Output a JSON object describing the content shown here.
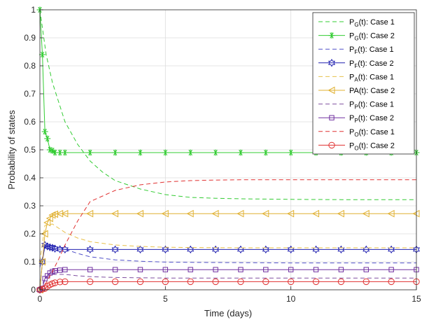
{
  "chart_data": {
    "type": "line",
    "title": "",
    "xlabel": "Time (days)",
    "ylabel": "Probability of states",
    "xlim": [
      0,
      15
    ],
    "ylim": [
      0,
      1
    ],
    "xticks": [
      0,
      5,
      10,
      15
    ],
    "yticks": [
      0,
      0.1,
      0.2,
      0.3,
      0.4,
      0.5,
      0.6,
      0.7,
      0.8,
      0.9,
      1
    ],
    "xtick_labels": [
      "0",
      "5",
      "10",
      "15"
    ],
    "ytick_labels": [
      "0",
      "0.1",
      "0.2",
      "0.3",
      "0.4",
      "0.5",
      "0.6",
      "0.7",
      "0.8",
      "0.9",
      "1"
    ],
    "grid": true,
    "legend_position": "top-right",
    "series": [
      {
        "label_main": "P",
        "label_sub": "G",
        "label_rest": "(t): Case 1",
        "color": "#33cc33",
        "style": "dashed",
        "marker": "none",
        "x": [
          0,
          0.25,
          0.5,
          0.75,
          1,
          1.5,
          2,
          2.5,
          3,
          4,
          5,
          6,
          7,
          8,
          10,
          12,
          15
        ],
        "y": [
          1,
          0.84,
          0.74,
          0.67,
          0.6,
          0.52,
          0.46,
          0.42,
          0.39,
          0.36,
          0.34,
          0.33,
          0.327,
          0.325,
          0.323,
          0.322,
          0.322
        ]
      },
      {
        "label_main": "P",
        "label_sub": "G",
        "label_rest": "(t): Case 2",
        "color": "#33cc33",
        "style": "solid",
        "marker": "asterisk",
        "x": [
          0,
          0.1,
          0.2,
          0.3,
          0.4,
          0.5,
          0.6,
          0.8,
          1,
          2,
          3,
          4,
          5,
          6,
          7,
          8,
          9,
          10,
          11,
          12,
          13,
          14,
          15
        ],
        "y": [
          1,
          0.84,
          0.565,
          0.54,
          0.5,
          0.497,
          0.49,
          0.49,
          0.49,
          0.49,
          0.49,
          0.49,
          0.49,
          0.49,
          0.49,
          0.49,
          0.49,
          0.49,
          0.49,
          0.49,
          0.49,
          0.49,
          0.49
        ]
      },
      {
        "label_main": "P",
        "label_sub": "F",
        "label_rest": "(t): Case 1",
        "color": "#5050c8",
        "style": "dashed",
        "marker": "none",
        "x": [
          0,
          0.2,
          0.5,
          1,
          1.5,
          2,
          3,
          4,
          5,
          6,
          8,
          10,
          15
        ],
        "y": [
          0.08,
          0.15,
          0.16,
          0.145,
          0.13,
          0.118,
          0.107,
          0.102,
          0.099,
          0.098,
          0.097,
          0.096,
          0.096
        ]
      },
      {
        "label_main": "P",
        "label_sub": "F",
        "label_rest": "(t): Case 2",
        "color": "#2020b0",
        "style": "solid",
        "marker": "hexagram",
        "x": [
          0,
          0.1,
          0.2,
          0.3,
          0.4,
          0.5,
          0.6,
          0.8,
          1,
          2,
          3,
          4,
          5,
          6,
          7,
          8,
          9,
          10,
          11,
          12,
          13,
          14,
          15
        ],
        "y": [
          0,
          0.1,
          0.16,
          0.155,
          0.152,
          0.15,
          0.147,
          0.145,
          0.144,
          0.144,
          0.144,
          0.144,
          0.144,
          0.144,
          0.144,
          0.144,
          0.144,
          0.144,
          0.144,
          0.144,
          0.144,
          0.144,
          0.144
        ]
      },
      {
        "label_main": "P",
        "label_sub": "A",
        "label_rest": "(t): Case 1",
        "color": "#e8c04a",
        "style": "dashed",
        "marker": "none",
        "x": [
          0,
          0.2,
          0.5,
          1,
          1.5,
          2,
          3,
          4,
          5,
          6,
          8,
          10,
          15
        ],
        "y": [
          0.1,
          0.23,
          0.235,
          0.205,
          0.185,
          0.172,
          0.16,
          0.155,
          0.152,
          0.151,
          0.15,
          0.15,
          0.15
        ]
      },
      {
        "label_main": "PA",
        "label_sub": "",
        "label_rest": "(t): Case 2",
        "color": "#e0b030",
        "style": "solid",
        "marker": "triangle-left",
        "x": [
          0,
          0.1,
          0.2,
          0.3,
          0.4,
          0.5,
          0.6,
          0.8,
          1,
          2,
          3,
          4,
          5,
          6,
          7,
          8,
          9,
          10,
          11,
          12,
          13,
          14,
          15
        ],
        "y": [
          0,
          0.1,
          0.2,
          0.24,
          0.255,
          0.267,
          0.27,
          0.272,
          0.272,
          0.272,
          0.272,
          0.272,
          0.272,
          0.272,
          0.272,
          0.272,
          0.272,
          0.272,
          0.272,
          0.272,
          0.272,
          0.272,
          0.272
        ]
      },
      {
        "label_main": "P",
        "label_sub": "P",
        "label_rest": "(t): Case 1",
        "color": "#8050a0",
        "style": "dashed",
        "marker": "none",
        "x": [
          0,
          0.2,
          0.5,
          1,
          1.5,
          2,
          3,
          4,
          5,
          6,
          8,
          10,
          15
        ],
        "y": [
          0,
          0.04,
          0.055,
          0.055,
          0.05,
          0.047,
          0.044,
          0.043,
          0.042,
          0.042,
          0.042,
          0.042,
          0.042
        ]
      },
      {
        "label_main": "P",
        "label_sub": "P",
        "label_rest": "(t): Case 2",
        "color": "#7030a0",
        "style": "solid",
        "marker": "square",
        "x": [
          0,
          0.1,
          0.2,
          0.3,
          0.4,
          0.5,
          0.6,
          0.8,
          1,
          2,
          3,
          4,
          5,
          6,
          7,
          8,
          9,
          10,
          11,
          12,
          13,
          14,
          15
        ],
        "y": [
          0,
          0.005,
          0.04,
          0.05,
          0.06,
          0.065,
          0.068,
          0.07,
          0.072,
          0.072,
          0.072,
          0.072,
          0.072,
          0.072,
          0.072,
          0.072,
          0.072,
          0.072,
          0.072,
          0.072,
          0.072,
          0.072,
          0.072
        ]
      },
      {
        "label_main": "P",
        "label_sub": "O",
        "label_rest": "(t): Case 1",
        "color": "#e03030",
        "style": "dashed",
        "marker": "none",
        "x": [
          0,
          0.25,
          0.5,
          0.75,
          1,
          1.5,
          2,
          2.5,
          3,
          4,
          5,
          6,
          7,
          8,
          10,
          12,
          15
        ],
        "y": [
          0,
          0.025,
          0.065,
          0.11,
          0.16,
          0.245,
          0.315,
          0.335,
          0.355,
          0.375,
          0.385,
          0.39,
          0.392,
          0.393,
          0.393,
          0.393,
          0.393
        ]
      },
      {
        "label_main": "P",
        "label_sub": "O",
        "label_rest": "(t): Case 2",
        "color": "#e03030",
        "style": "solid",
        "marker": "circle",
        "x": [
          0,
          0.1,
          0.2,
          0.3,
          0.4,
          0.5,
          0.6,
          0.8,
          1,
          2,
          3,
          4,
          5,
          6,
          7,
          8,
          9,
          10,
          11,
          12,
          13,
          14,
          15
        ],
        "y": [
          0,
          0.002,
          0.005,
          0.012,
          0.018,
          0.022,
          0.025,
          0.028,
          0.029,
          0.029,
          0.029,
          0.029,
          0.029,
          0.029,
          0.029,
          0.029,
          0.029,
          0.029,
          0.029,
          0.029,
          0.029,
          0.029,
          0.029
        ]
      }
    ]
  }
}
